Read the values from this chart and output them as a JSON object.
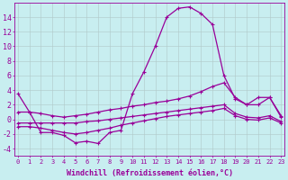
{
  "background_color": "#c8eef0",
  "grid_color": "#b0c8c8",
  "line_color": "#990099",
  "xlabel": "Windchill (Refroidissement éolien,°C)",
  "xlabel_fontsize": 6,
  "yticks": [
    -4,
    -2,
    0,
    2,
    4,
    6,
    8,
    10,
    12,
    14
  ],
  "xticks": [
    0,
    1,
    2,
    3,
    4,
    5,
    6,
    7,
    8,
    9,
    10,
    11,
    12,
    13,
    14,
    15,
    16,
    17,
    18,
    19,
    20,
    21,
    22,
    23
  ],
  "xtick_fontsize": 5,
  "ytick_fontsize": 6,
  "ylim": [
    -5,
    16
  ],
  "xlim": [
    -0.3,
    23.3
  ],
  "series1_x": [
    0,
    1,
    2,
    3,
    4,
    5,
    6,
    7,
    8,
    9,
    10,
    11,
    12,
    13,
    14,
    15,
    16,
    17,
    18,
    19,
    20,
    21,
    22,
    23
  ],
  "series1_y": [
    3.5,
    1.0,
    -1.8,
    -1.8,
    -2.2,
    -3.2,
    -3.0,
    -3.3,
    -1.8,
    -1.5,
    3.5,
    6.5,
    10.0,
    14.0,
    15.2,
    15.4,
    14.5,
    13.0,
    6.0,
    2.8,
    2.0,
    3.0,
    3.0,
    0.5
  ],
  "series2_x": [
    0,
    1,
    2,
    3,
    4,
    5,
    6,
    7,
    8,
    9,
    10,
    11,
    12,
    13,
    14,
    15,
    16,
    17,
    18,
    19,
    20,
    21,
    22,
    23
  ],
  "series2_y": [
    1.0,
    1.0,
    0.8,
    0.5,
    0.3,
    0.5,
    0.7,
    1.0,
    1.3,
    1.5,
    1.8,
    2.0,
    2.3,
    2.5,
    2.8,
    3.2,
    3.8,
    4.5,
    5.0,
    3.0,
    2.0,
    2.0,
    3.0,
    0.3
  ],
  "series3_x": [
    0,
    1,
    2,
    3,
    4,
    5,
    6,
    7,
    8,
    9,
    10,
    11,
    12,
    13,
    14,
    15,
    16,
    17,
    18,
    19,
    20,
    21,
    22,
    23
  ],
  "series3_y": [
    -0.5,
    -0.5,
    -0.5,
    -0.5,
    -0.5,
    -0.5,
    -0.3,
    -0.2,
    0.0,
    0.2,
    0.4,
    0.6,
    0.8,
    1.0,
    1.2,
    1.4,
    1.6,
    1.8,
    2.0,
    0.8,
    0.3,
    0.2,
    0.5,
    -0.3
  ],
  "series4_x": [
    0,
    1,
    2,
    3,
    4,
    5,
    6,
    7,
    8,
    9,
    10,
    11,
    12,
    13,
    14,
    15,
    16,
    17,
    18,
    19,
    20,
    21,
    22,
    23
  ],
  "series4_y": [
    -1.0,
    -1.0,
    -1.2,
    -1.5,
    -1.8,
    -2.0,
    -1.8,
    -1.5,
    -1.2,
    -0.8,
    -0.5,
    -0.2,
    0.1,
    0.4,
    0.6,
    0.8,
    1.0,
    1.2,
    1.5,
    0.5,
    0.0,
    -0.1,
    0.2,
    -0.5
  ]
}
